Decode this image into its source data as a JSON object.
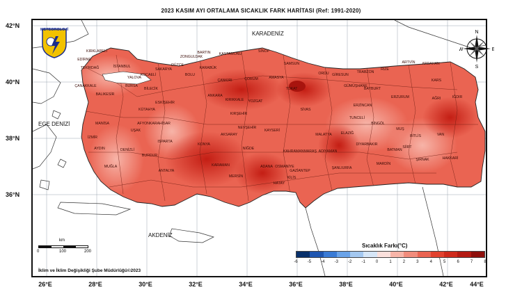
{
  "title": "2023 KASIM AYI ORTALAMA SICAKLIK FARK HARİTASI (Ref: 1991-2020)",
  "lat_labels": [
    "42°N",
    "40°N",
    "38°N",
    "36°N"
  ],
  "lon_labels": [
    "26°E",
    "28°E",
    "30°E",
    "32°E",
    "34°E",
    "36°E",
    "38°E",
    "40°E",
    "42°E",
    "44°E"
  ],
  "seas": {
    "north": "KARADENİZ",
    "west": "EGE DENİZİ",
    "south": "AKDENİZ"
  },
  "logo": {
    "text": "METEOROLOJİ"
  },
  "compass": {
    "n": "N",
    "s": "S",
    "e": "E",
    "w": "W"
  },
  "legend": {
    "title": "Sıcaklık Farkı(°C)",
    "ticks": [
      "-6",
      "-5",
      "-4",
      "-3",
      "-2",
      "-1",
      "0",
      "1",
      "2",
      "3",
      "4",
      "5",
      "6",
      "7",
      "8"
    ],
    "colors": [
      "#08306b",
      "#1f56b0",
      "#3a7bd5",
      "#6aa3e8",
      "#a4c8f0",
      "#d6e6f7",
      "#fbe0dc",
      "#f7b4a8",
      "#f18c7c",
      "#ea6452",
      "#e2422f",
      "#cf2a1c",
      "#b31a12",
      "#8e0f0b"
    ]
  },
  "scalebar": {
    "unit": "km",
    "ticks": [
      "0",
      "100",
      "200"
    ]
  },
  "footer": "İklim ve İklim Değişikliği Şube Müdürlüğü©2023",
  "cities": [
    "KIRKLARELİ",
    "EDİRNE",
    "TEKİRDAĞ",
    "İSTANBUL",
    "KOCAELİ",
    "SAKARYA",
    "DÜZCE",
    "ZONGULDAK",
    "BARTIN",
    "KASTAMONU",
    "SİNOP",
    "SAMSUN",
    "ORDU",
    "GİRESUN",
    "TRABZON",
    "RİZE",
    "ARTVİN",
    "ARDAHAN",
    "KARS",
    "IĞDIR",
    "AĞRI",
    "ERZURUM",
    "BAYBURT",
    "GÜMÜŞHANE",
    "ERZİNCAN",
    "TUNCELİ",
    "BİNGÖL",
    "MUŞ",
    "BİTLİS",
    "VAN",
    "HAKKARİ",
    "ŞIRNAK",
    "SİİRT",
    "BATMAN",
    "MARDİN",
    "DİYARBAKIR",
    "ŞANLIURFA",
    "ADIYAMAN",
    "MALATYA",
    "ELAZIĞ",
    "GAZİANTEP",
    "KİLİS",
    "HATAY",
    "OSMANİYE",
    "ADANA",
    "MERSİN",
    "KARAMAN",
    "KONYA",
    "ANTALYA",
    "BURDUR",
    "ISPARTA",
    "AFYONKARAHİSAR",
    "KÜTAHYA",
    "ESKİŞEHİR",
    "BİLECİK",
    "BURSA",
    "BALIKESİR",
    "ÇANAKKALE",
    "MANİSA",
    "İZMİR",
    "AYDIN",
    "MUĞLA",
    "DENİZLİ",
    "UŞAK",
    "ANKARA",
    "KIRIKKALE",
    "ÇANKIRI",
    "ÇORUM",
    "AMASYA",
    "TOKAT",
    "YOZGAT",
    "SİVAS",
    "KIRŞEHİR",
    "NEVŞEHİR",
    "KAYSERİ",
    "NİĞDE",
    "AKSARAY",
    "KAHRAMANMARAŞ",
    "BOLU",
    "KARABÜK",
    "YALOVA"
  ]
}
